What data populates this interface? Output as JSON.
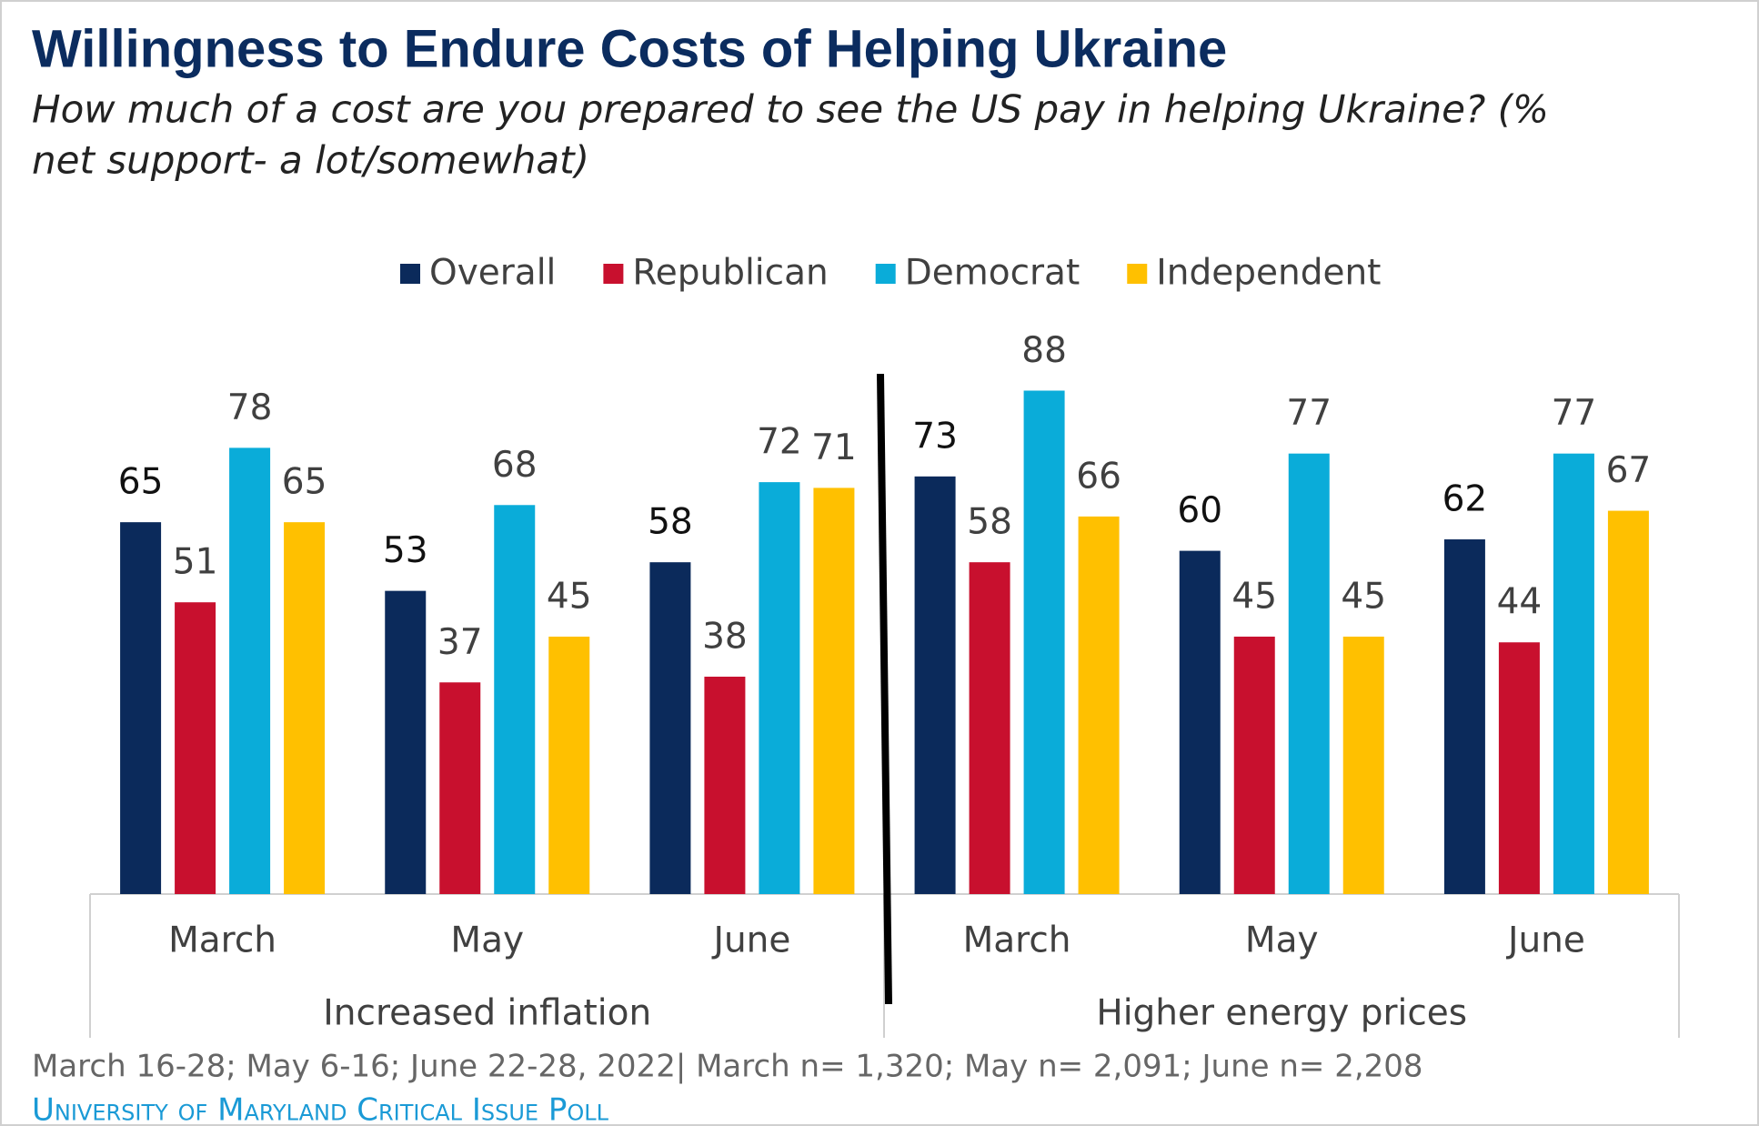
{
  "chart_data": {
    "type": "bar",
    "title": "Willingness to Endure Costs of Helping Ukraine",
    "subtitle": [
      "How much of a cost are you prepared to see the US pay in helping Ukraine? (%",
      "net support- a lot/somewhat)"
    ],
    "categories": [
      "March",
      "May",
      "June",
      "March",
      "May",
      "June"
    ],
    "group_labels": [
      "Increased inflation",
      "Higher energy prices"
    ],
    "series": [
      {
        "name": "Overall",
        "color": "#0b2a5b",
        "values": [
          65,
          53,
          58,
          73,
          60,
          62
        ]
      },
      {
        "name": "Republican",
        "color": "#c8102e",
        "values": [
          51,
          37,
          38,
          58,
          45,
          44
        ]
      },
      {
        "name": "Democrat",
        "color": "#0aacd9",
        "values": [
          78,
          68,
          72,
          88,
          77,
          77
        ]
      },
      {
        "name": "Independent",
        "color": "#ffc000",
        "values": [
          65,
          45,
          71,
          66,
          45,
          67
        ]
      }
    ],
    "footnote": "March 16-28; May 6-16; June  22-28, 2022| March n= 1,320;  May n=  2,091; June n=  2,208",
    "source": "University of Maryland Critical Issue Poll"
  }
}
